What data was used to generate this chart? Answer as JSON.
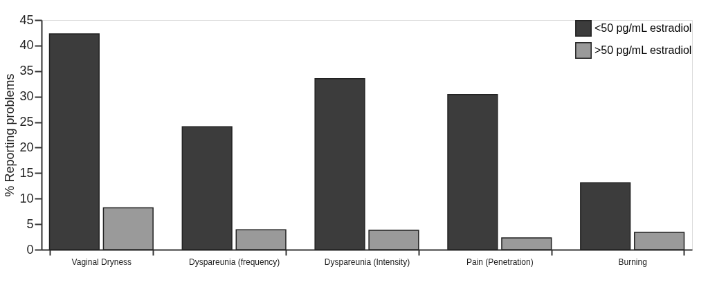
{
  "chart_data": {
    "type": "bar",
    "ylabel": "% Reporting problems",
    "categories": [
      "Vaginal Dryness",
      "Dyspareunia (frequency)",
      "Dyspareunia (Intensity)",
      "Pain (Penetration)",
      "Burning"
    ],
    "series": [
      {
        "name": "<50 pg/mL estradiol",
        "color": "#3c3c3c",
        "values": [
          42.3,
          24.1,
          33.5,
          30.4,
          13.1
        ]
      },
      {
        "name": ">50 pg/mL estradiol",
        "color": "#9a9a9a",
        "values": [
          8.2,
          3.9,
          3.8,
          2.3,
          3.4
        ]
      }
    ],
    "ylim": [
      0,
      45
    ],
    "yticks": [
      0,
      5,
      10,
      15,
      20,
      25,
      30,
      35,
      40,
      45
    ],
    "grid": false,
    "legend": "top right"
  }
}
